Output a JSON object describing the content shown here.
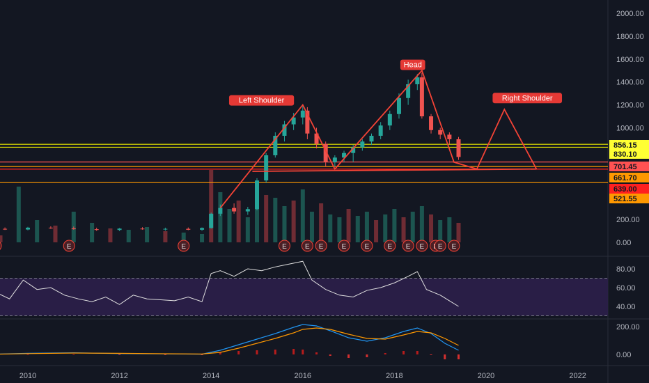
{
  "chart_data": {
    "type": "candlestick",
    "x_ticks": [
      "2010",
      "2012",
      "2014",
      "2016",
      "2018",
      "2020",
      "2022"
    ],
    "price_ticks": [
      "2000.00",
      "1800.00",
      "1600.00",
      "1400.00",
      "1200.00",
      "1000.00",
      "200.00",
      "0.00"
    ],
    "candles": [
      [
        2009.0,
        110,
        125,
        100,
        118
      ],
      [
        2009.5,
        118,
        130,
        108,
        112
      ],
      [
        2010.0,
        112,
        135,
        105,
        128
      ],
      [
        2010.5,
        128,
        140,
        118,
        122
      ],
      [
        2011.0,
        122,
        138,
        110,
        115
      ],
      [
        2011.5,
        115,
        128,
        100,
        108
      ],
      [
        2012.0,
        108,
        125,
        98,
        120
      ],
      [
        2012.5,
        120,
        132,
        110,
        114
      ],
      [
        2013.0,
        114,
        128,
        102,
        118
      ],
      [
        2013.5,
        118,
        130,
        106,
        110
      ],
      [
        2013.8,
        110,
        130,
        100,
        125
      ],
      [
        2014.0,
        125,
        260,
        120,
        250
      ],
      [
        2014.2,
        250,
        330,
        230,
        300
      ],
      [
        2014.5,
        300,
        340,
        250,
        270
      ],
      [
        2014.8,
        270,
        310,
        240,
        290
      ],
      [
        2015.0,
        290,
        560,
        280,
        540
      ],
      [
        2015.2,
        540,
        780,
        520,
        760
      ],
      [
        2015.4,
        760,
        960,
        740,
        930
      ],
      [
        2015.6,
        930,
        1060,
        880,
        1030
      ],
      [
        2015.8,
        1030,
        1130,
        980,
        1090
      ],
      [
        2016.0,
        1090,
        1200,
        1030,
        1150
      ],
      [
        2016.1,
        1150,
        1180,
        900,
        950
      ],
      [
        2016.3,
        950,
        1000,
        820,
        860
      ],
      [
        2016.5,
        860,
        880,
        660,
        700
      ],
      [
        2016.7,
        700,
        760,
        660,
        740
      ],
      [
        2016.9,
        740,
        800,
        700,
        780
      ],
      [
        2017.1,
        780,
        850,
        700,
        830
      ],
      [
        2017.3,
        830,
        900,
        800,
        880
      ],
      [
        2017.5,
        880,
        950,
        850,
        930
      ],
      [
        2017.7,
        930,
        1050,
        900,
        1020
      ],
      [
        2017.9,
        1020,
        1150,
        980,
        1120
      ],
      [
        2018.1,
        1120,
        1300,
        1080,
        1260
      ],
      [
        2018.3,
        1260,
        1420,
        1200,
        1380
      ],
      [
        2018.5,
        1380,
        1470,
        1330,
        1440
      ],
      [
        2018.6,
        1440,
        1480,
        1080,
        1100
      ],
      [
        2018.8,
        1100,
        1120,
        950,
        980
      ],
      [
        2019.0,
        980,
        1000,
        900,
        940
      ],
      [
        2019.2,
        940,
        960,
        860,
        900
      ],
      [
        2019.4,
        900,
        920,
        720,
        745
      ]
    ],
    "volume": [
      [
        2009.0,
        40
      ],
      [
        2009.4,
        25
      ],
      [
        2009.8,
        200
      ],
      [
        2010.2,
        80
      ],
      [
        2010.6,
        60
      ],
      [
        2011.0,
        110
      ],
      [
        2011.4,
        70
      ],
      [
        2011.8,
        50
      ],
      [
        2012.2,
        45
      ],
      [
        2012.6,
        55
      ],
      [
        2013.0,
        40
      ],
      [
        2013.4,
        35
      ],
      [
        2013.8,
        30
      ],
      [
        2014.0,
        260
      ],
      [
        2014.2,
        180
      ],
      [
        2014.4,
        120
      ],
      [
        2014.6,
        150
      ],
      [
        2014.8,
        90
      ],
      [
        2015.0,
        200
      ],
      [
        2015.2,
        170
      ],
      [
        2015.4,
        160
      ],
      [
        2015.6,
        130
      ],
      [
        2015.8,
        150
      ],
      [
        2016.0,
        190
      ],
      [
        2016.2,
        110
      ],
      [
        2016.4,
        140
      ],
      [
        2016.6,
        100
      ],
      [
        2016.8,
        90
      ],
      [
        2017.0,
        120
      ],
      [
        2017.2,
        95
      ],
      [
        2017.4,
        110
      ],
      [
        2017.6,
        80
      ],
      [
        2017.8,
        100
      ],
      [
        2018.0,
        120
      ],
      [
        2018.2,
        90
      ],
      [
        2018.4,
        110
      ],
      [
        2018.6,
        130
      ],
      [
        2018.8,
        100
      ],
      [
        2019.0,
        80
      ],
      [
        2019.2,
        90
      ],
      [
        2019.4,
        70
      ]
    ],
    "levels": [
      {
        "value": "856.15",
        "color": "#e6e600",
        "bg": "#ffff33"
      },
      {
        "value": "830.10",
        "color": "#e6e600",
        "bg": "#ffff33"
      },
      {
        "value": "701.45",
        "color": "#ff5252",
        "bg": "#ff5252"
      },
      {
        "value": "661.70",
        "color": "#ff9800",
        "bg": "#ff9800"
      },
      {
        "value": "639.00",
        "color": "#ff2020",
        "bg": "#ff2020"
      },
      {
        "value": "521.55",
        "color": "#ff9800",
        "bg": "#ff9800"
      }
    ],
    "annotations": [
      "Left Shoulder",
      "Head",
      "Right Shoulder"
    ],
    "earnings_marker": "E",
    "rsi": {
      "ticks": [
        "80.00",
        "60.00",
        "40.00"
      ],
      "overbought": 70,
      "oversold": 30,
      "x": [
        2009.0,
        2009.3,
        2009.6,
        2009.9,
        2010.2,
        2010.5,
        2010.8,
        2011.1,
        2011.4,
        2011.7,
        2012.0,
        2012.3,
        2012.6,
        2012.9,
        2013.2,
        2013.5,
        2013.8,
        2014.0,
        2014.2,
        2014.5,
        2014.8,
        2015.1,
        2015.4,
        2015.7,
        2016.0,
        2016.2,
        2016.5,
        2016.8,
        2017.1,
        2017.4,
        2017.7,
        2018.0,
        2018.3,
        2018.5,
        2018.7,
        2019.0,
        2019.2,
        2019.4
      ],
      "y": [
        50,
        55,
        48,
        68,
        58,
        60,
        52,
        48,
        45,
        50,
        42,
        52,
        48,
        47,
        46,
        50,
        45,
        75,
        78,
        72,
        80,
        78,
        82,
        85,
        88,
        68,
        58,
        52,
        50,
        57,
        60,
        65,
        72,
        77,
        58,
        52,
        46,
        40
      ]
    },
    "macd": {
      "ticks": [
        "200.00",
        "0.00"
      ],
      "x": [
        2009.0,
        2010.0,
        2011.0,
        2012.0,
        2013.0,
        2013.8,
        2014.2,
        2014.6,
        2015.0,
        2015.4,
        2015.8,
        2016.0,
        2016.3,
        2016.6,
        2017.0,
        2017.4,
        2017.8,
        2018.2,
        2018.5,
        2018.8,
        2019.1,
        2019.4
      ],
      "macd": [
        0,
        8,
        12,
        6,
        4,
        2,
        30,
        70,
        110,
        150,
        195,
        215,
        205,
        170,
        120,
        95,
        120,
        165,
        190,
        150,
        80,
        30
      ],
      "signal": [
        0,
        6,
        10,
        8,
        5,
        3,
        15,
        45,
        80,
        115,
        155,
        180,
        190,
        180,
        145,
        115,
        110,
        140,
        165,
        155,
        115,
        65
      ],
      "hist": [
        0,
        2,
        2,
        -2,
        -1,
        -1,
        15,
        25,
        30,
        35,
        40,
        35,
        15,
        -10,
        -25,
        -20,
        10,
        25,
        25,
        -5,
        -35,
        -35
      ]
    }
  }
}
